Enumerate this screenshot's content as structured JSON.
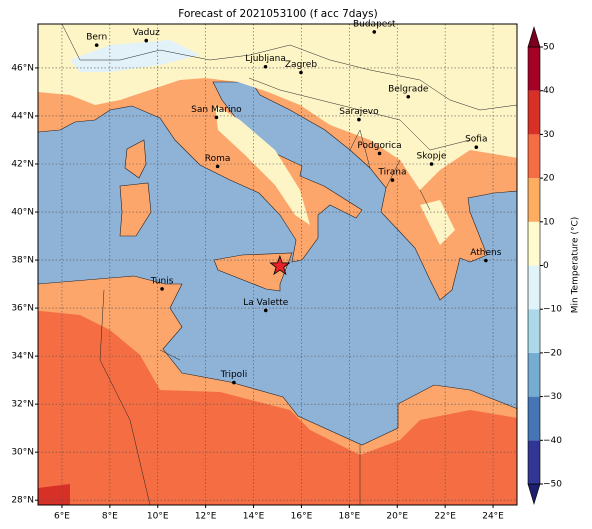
{
  "map": {
    "title": "Forecast of 2021053100 (f acc 7days)",
    "lon_lim": [
      5,
      25.0
    ],
    "lat_lim": [
      27.8,
      47.83
    ],
    "lon_ticks": [
      {
        "value": 6,
        "label": "6°E"
      },
      {
        "value": 8,
        "label": "8°E"
      },
      {
        "value": 10,
        "label": "10°E"
      },
      {
        "value": 12,
        "label": "12°E"
      },
      {
        "value": 14,
        "label": "14°E"
      },
      {
        "value": 16,
        "label": "16°E"
      },
      {
        "value": 18,
        "label": "18°E"
      },
      {
        "value": 20,
        "label": "20°E"
      },
      {
        "value": 22,
        "label": "22°E"
      },
      {
        "value": 24,
        "label": "24°E"
      }
    ],
    "lat_ticks": [
      {
        "value": 28,
        "label": "28°N"
      },
      {
        "value": 30,
        "label": "30°N"
      },
      {
        "value": 32,
        "label": "32°N"
      },
      {
        "value": 34,
        "label": "34°N"
      },
      {
        "value": 36,
        "label": "36°N"
      },
      {
        "value": 38,
        "label": "38°N"
      },
      {
        "value": 40,
        "label": "40°N"
      },
      {
        "value": 42,
        "label": "42°N"
      },
      {
        "value": 44,
        "label": "44°N"
      },
      {
        "value": 46,
        "label": "46°N"
      }
    ],
    "grid": true,
    "cities": [
      {
        "name": "Bern",
        "lon": 7.45,
        "lat": 46.95
      },
      {
        "name": "Vaduz",
        "lon": 9.52,
        "lat": 47.14
      },
      {
        "name": "Budapest",
        "lon": 19.04,
        "lat": 47.5
      },
      {
        "name": "Ljubljana",
        "lon": 14.5,
        "lat": 46.05
      },
      {
        "name": "Zagreb",
        "lon": 15.98,
        "lat": 45.81
      },
      {
        "name": "Belgrade",
        "lon": 20.46,
        "lat": 44.8
      },
      {
        "name": "San Marino",
        "lon": 12.45,
        "lat": 43.94
      },
      {
        "name": "Sarajevo",
        "lon": 18.4,
        "lat": 43.85
      },
      {
        "name": "Sofia",
        "lon": 23.3,
        "lat": 42.7
      },
      {
        "name": "Podgorica",
        "lon": 19.26,
        "lat": 42.44
      },
      {
        "name": "Skopje",
        "lon": 21.43,
        "lat": 42.0
      },
      {
        "name": "Roma",
        "lon": 12.5,
        "lat": 41.9
      },
      {
        "name": "Tirana",
        "lon": 19.8,
        "lat": 41.33
      },
      {
        "name": "Athens",
        "lon": 23.7,
        "lat": 37.98
      },
      {
        "name": "Tunis",
        "lon": 10.18,
        "lat": 36.8
      },
      {
        "name": "La Valette",
        "lon": 14.51,
        "lat": 35.9
      },
      {
        "name": "Tripoli",
        "lon": 13.18,
        "lat": 32.9
      }
    ],
    "marker": {
      "lon": 15.1,
      "lat": 37.75,
      "color": "#e8202a"
    },
    "colorbar": {
      "label": "Min Temperature (°C)",
      "lim": [
        -50,
        50
      ],
      "ticks": [
        {
          "value": -50,
          "label": "−50"
        },
        {
          "value": -40,
          "label": "−40"
        },
        {
          "value": -30,
          "label": "−30"
        },
        {
          "value": -20,
          "label": "−20"
        },
        {
          "value": -10,
          "label": "−10"
        },
        0,
        10,
        20,
        30,
        40,
        50
      ],
      "colors": [
        "#313695",
        "#4575b4",
        "#74add1",
        "#abd9e9",
        "#e0f3f8",
        "#fffbcc",
        "#fdae61",
        "#f46d43",
        "#d73027",
        "#a50026"
      ],
      "under_color": "#1e1e6e",
      "over_color": "#7a0020"
    }
  }
}
